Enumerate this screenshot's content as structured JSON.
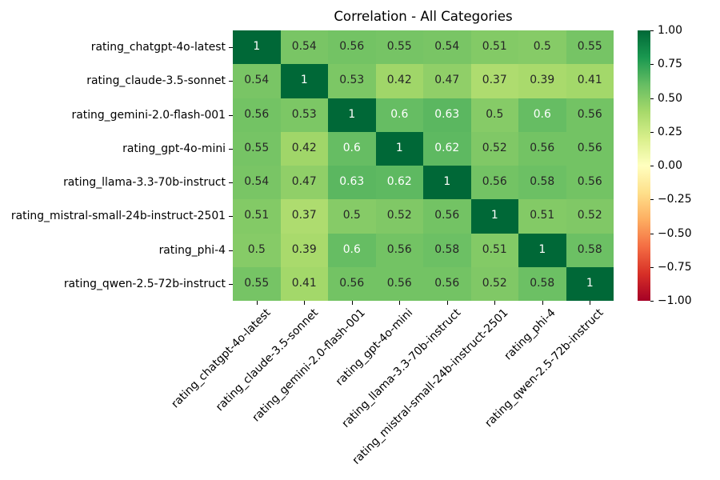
{
  "chart_data": {
    "type": "heatmap",
    "title": "Correlation - All Categories",
    "categories": [
      "rating_chatgpt-4o-latest",
      "rating_claude-3.5-sonnet",
      "rating_gemini-2.0-flash-001",
      "rating_gpt-4o-mini",
      "rating_llama-3.3-70b-instruct",
      "rating_mistral-small-24b-instruct-2501",
      "rating_phi-4",
      "rating_qwen-2.5-72b-instruct"
    ],
    "matrix": [
      [
        1.0,
        0.54,
        0.56,
        0.55,
        0.54,
        0.51,
        0.5,
        0.55
      ],
      [
        0.54,
        1.0,
        0.53,
        0.42,
        0.47,
        0.37,
        0.39,
        0.41
      ],
      [
        0.56,
        0.53,
        1.0,
        0.6,
        0.63,
        0.5,
        0.6,
        0.56
      ],
      [
        0.55,
        0.42,
        0.6,
        1.0,
        0.62,
        0.52,
        0.56,
        0.56
      ],
      [
        0.54,
        0.47,
        0.63,
        0.62,
        1.0,
        0.56,
        0.58,
        0.56
      ],
      [
        0.51,
        0.37,
        0.5,
        0.52,
        0.56,
        1.0,
        0.51,
        0.52
      ],
      [
        0.5,
        0.39,
        0.6,
        0.56,
        0.58,
        0.51,
        1.0,
        0.58
      ],
      [
        0.55,
        0.41,
        0.56,
        0.56,
        0.56,
        0.52,
        0.58,
        1.0
      ]
    ],
    "vmin": -1,
    "vmax": 1,
    "grid": false,
    "colormap": {
      "name": "RdYlGn",
      "stops": [
        "#a50026",
        "#d73027",
        "#f46d43",
        "#fdae61",
        "#fee08b",
        "#ffffbf",
        "#d9ef8b",
        "#a6d96a",
        "#66bd63",
        "#1a9850",
        "#006837"
      ]
    },
    "annot_colors": {
      "light_text": "#ffffff",
      "dark_text": "#262626"
    },
    "colorbar": {
      "position": "right",
      "tick_values": [
        1.0,
        0.75,
        0.5,
        0.25,
        0.0,
        -0.25,
        -0.5,
        -0.75,
        -1.0
      ],
      "tick_labels": [
        "1.00",
        "0.75",
        "0.50",
        "0.25",
        "0.00",
        "−0.25",
        "−0.50",
        "−0.75",
        "−1.00"
      ]
    }
  }
}
